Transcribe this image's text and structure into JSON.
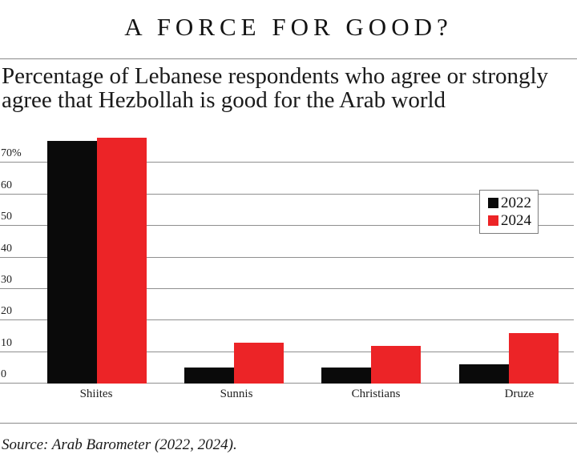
{
  "header": {
    "title": "A FORCE FOR GOOD?",
    "subtitle": "Percentage of Lebanese respondents who agree or strongly agree that Hezbollah is good for the Arab world"
  },
  "chart_data": {
    "type": "bar",
    "title": "A FORCE FOR GOOD?",
    "subtitle": "Percentage of Lebanese respondents who agree or strongly agree that Hezbollah is good for the Arab world",
    "categories": [
      "Shiites",
      "Sunnis",
      "Christians",
      "Druze"
    ],
    "series": [
      {
        "name": "2022",
        "color": "#0a0a0a",
        "values": [
          77,
          5,
          5,
          6
        ]
      },
      {
        "name": "2024",
        "color": "#ec2427",
        "values": [
          78,
          13,
          12,
          16
        ]
      }
    ],
    "unit": "%",
    "ylim": [
      0,
      80
    ],
    "ytick_values": [
      0,
      10,
      20,
      30,
      40,
      50,
      60,
      70
    ],
    "ytick_labels": [
      "0",
      "10",
      "20",
      "30",
      "40",
      "50",
      "60",
      "70%"
    ],
    "grid": true,
    "legend_position": "right-middle"
  },
  "footer": {
    "source": "Source: Arab Barometer (2022, 2024)."
  },
  "colors": {
    "series_2022": "#0a0a0a",
    "series_2024": "#ec2427",
    "gridline": "#8f8f8f",
    "rule": "#8a8a8a"
  }
}
